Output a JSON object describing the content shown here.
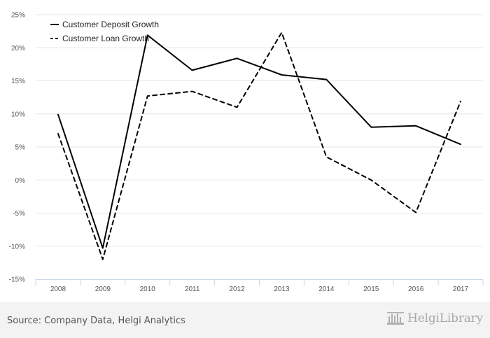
{
  "chart_data": {
    "type": "line",
    "categories": [
      "2008",
      "2009",
      "2010",
      "2011",
      "2012",
      "2013",
      "2014",
      "2015",
      "2016",
      "2017"
    ],
    "series": [
      {
        "name": "Customer Deposit Growth",
        "style": "solid",
        "color": "#000000",
        "values": [
          9.9,
          -10.3,
          21.9,
          16.6,
          18.4,
          15.9,
          15.2,
          8.0,
          8.2,
          5.4
        ]
      },
      {
        "name": "Customer Loan Growth",
        "style": "dashed",
        "color": "#000000",
        "values": [
          7.0,
          -12.0,
          12.7,
          13.4,
          11.0,
          22.3,
          3.5,
          0.0,
          -4.9,
          11.9
        ]
      }
    ],
    "y_ticks": [
      "25%",
      "20%",
      "15%",
      "10%",
      "5%",
      "0%",
      "-5%",
      "-10%",
      "-15%"
    ],
    "ylim": [
      -15,
      25
    ],
    "title": "",
    "xlabel": "",
    "ylabel": "",
    "grid": true,
    "legend_position": "top-left"
  },
  "footer": {
    "source": "Source: Company Data, Helgi Analytics",
    "logo_text": "HelgiLibrary"
  }
}
